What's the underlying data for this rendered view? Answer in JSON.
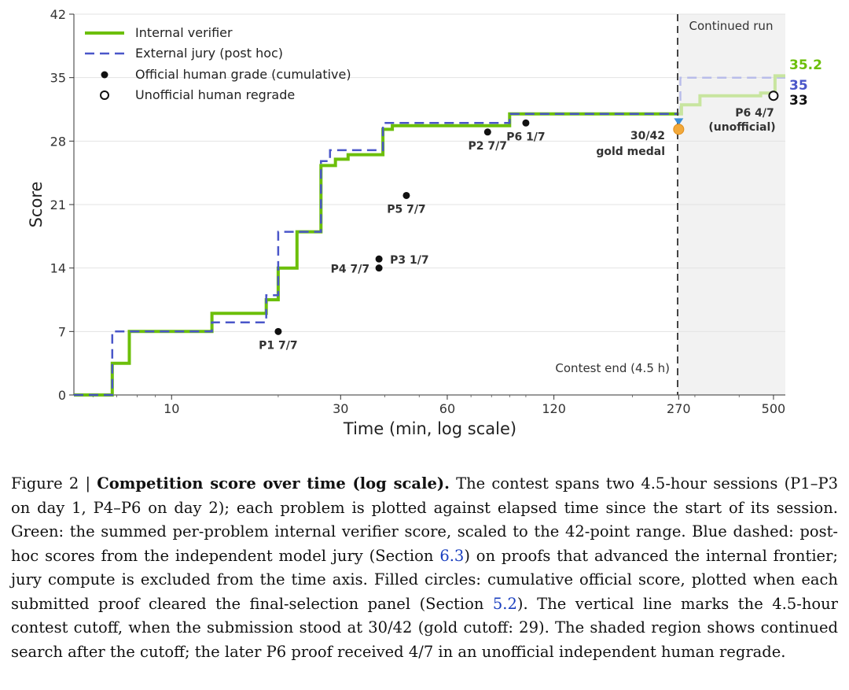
{
  "chart_data": {
    "type": "line",
    "title": "",
    "xlabel": "Time (min, log scale)",
    "ylabel": "Score",
    "xscale": "log",
    "xlim": [
      5.3,
      540
    ],
    "ylim": [
      0,
      42
    ],
    "grid": "horizontal",
    "legend_position": "top-left",
    "x_ticks": [
      10,
      30,
      60,
      120,
      270,
      500
    ],
    "x_tick_labels": [
      "10",
      "30",
      "60",
      "120",
      "270",
      "500"
    ],
    "y_ticks": [
      0,
      7,
      14,
      21,
      28,
      35,
      42
    ],
    "y_tick_labels": [
      "0",
      "7",
      "14",
      "21",
      "28",
      "35",
      "42"
    ],
    "series": [
      {
        "name": "Internal verifier",
        "color": "#6cbf0a",
        "style": "solid-step",
        "points": [
          [
            5.3,
            0
          ],
          [
            6.8,
            0
          ],
          [
            6.8,
            3.5
          ],
          [
            7.6,
            3.5
          ],
          [
            7.6,
            7
          ],
          [
            13,
            7
          ],
          [
            13,
            9
          ],
          [
            18.5,
            9
          ],
          [
            18.5,
            10.5
          ],
          [
            20,
            10.5
          ],
          [
            20,
            14
          ],
          [
            22.6,
            14
          ],
          [
            22.6,
            18
          ],
          [
            26.4,
            18
          ],
          [
            26.4,
            25.3
          ],
          [
            29,
            25.3
          ],
          [
            29,
            26
          ],
          [
            31.5,
            26
          ],
          [
            31.5,
            26.5
          ],
          [
            39.5,
            26.5
          ],
          [
            39.5,
            29.3
          ],
          [
            42,
            29.3
          ],
          [
            42,
            29.7
          ],
          [
            90,
            29.7
          ],
          [
            90,
            31
          ],
          [
            270,
            31
          ]
        ]
      },
      {
        "name": "External jury (post hoc)",
        "color": "#4a56c9",
        "style": "dashed-step",
        "points": [
          [
            5.3,
            0
          ],
          [
            6.8,
            0
          ],
          [
            6.8,
            7
          ],
          [
            13,
            7
          ],
          [
            13,
            8
          ],
          [
            18.5,
            8
          ],
          [
            18.5,
            11
          ],
          [
            20,
            11
          ],
          [
            20,
            18
          ],
          [
            26.4,
            18
          ],
          [
            26.4,
            25.8
          ],
          [
            28,
            25.8
          ],
          [
            28,
            27
          ],
          [
            39.5,
            27
          ],
          [
            39.5,
            30
          ],
          [
            90,
            30
          ],
          [
            90,
            31
          ],
          [
            270,
            31
          ]
        ]
      },
      {
        "name": "Official human grade (cumulative)",
        "type": "scatter",
        "points": [
          {
            "x": 20,
            "y": 7,
            "label": "P1 7/7"
          },
          {
            "x": 38.5,
            "y": 14,
            "label": "P4 7/7"
          },
          {
            "x": 38.5,
            "y": 15,
            "label": "P3 1/7"
          },
          {
            "x": 46,
            "y": 22,
            "label": "P5 7/7"
          },
          {
            "x": 78,
            "y": 29,
            "label": "P2 7/7"
          },
          {
            "x": 100,
            "y": 30,
            "label": "P6 1/7"
          }
        ]
      },
      {
        "name": "Unofficial human regrade",
        "type": "scatter-open",
        "points": [
          {
            "x": 500,
            "y": 33,
            "label": "P6 4/7\n(unofficial)"
          }
        ]
      }
    ],
    "continued_run": {
      "internal_verifier": [
        [
          270,
          31
        ],
        [
          275,
          31
        ],
        [
          275,
          32
        ],
        [
          310,
          32
        ],
        [
          310,
          33
        ],
        [
          460,
          33
        ],
        [
          460,
          33.3
        ],
        [
          505,
          33.3
        ],
        [
          505,
          35.2
        ],
        [
          540,
          35.2
        ]
      ],
      "external_jury": [
        [
          270,
          31
        ],
        [
          273,
          31
        ],
        [
          273,
          35
        ],
        [
          540,
          35
        ]
      ]
    },
    "contest_end_x": 270,
    "final_values": [
      {
        "text": "35.2",
        "y": 35.2,
        "color": "#6cbf0a"
      },
      {
        "text": "35",
        "y": 35,
        "color": "#4a56c9"
      },
      {
        "text": "33",
        "y": 33,
        "color": "#111111"
      }
    ],
    "annotations": {
      "continued_run": "Continued run",
      "contest_end": "Contest end (4.5 h)",
      "gold_score": "30/42",
      "gold_label": "gold medal",
      "p6_regrade_line1": "P6 4/7",
      "p6_regrade_line2": "(unofficial)"
    },
    "medal_marker": {
      "x": 270,
      "y": 29.3,
      "color": "#f2a93b"
    }
  },
  "caption": {
    "prefix": "Figure 2 | ",
    "title": "Competition score over time (log scale).",
    "p1": " The contest spans two 4.5-hour sessions (P1–P3 on day 1, P4–P6 on day 2); each problem is plotted against elapsed time since the start of its session. Green: the summed per-problem internal verifier score, scaled to the 42-point range. Blue dashed: post-hoc scores from the independent model jury (Section ",
    "ref1": "6.3",
    "p2": ") on proofs that advanced the internal frontier; jury compute is excluded from the time axis. Filled circles: cumulative official score, plotted when each submitted proof cleared the final-selection panel (Section ",
    "ref2": "5.2",
    "p3": "). The vertical line marks the 4.5-hour contest cutoff, when the submission stood at 30/42 (gold cutoff: 29). The shaded region shows continued search after the cutoff; the later P6 proof received 4/7 in an unofficial independent human regrade."
  }
}
